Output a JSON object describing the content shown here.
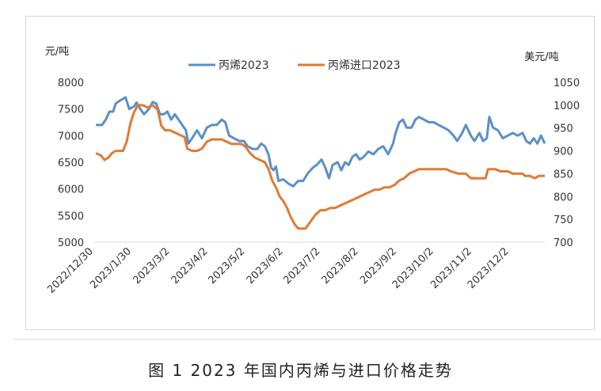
{
  "chart_data": {
    "type": "line",
    "caption": "图 1 2023 年国内丙烯与进口价格走势",
    "y_left": {
      "label": "元/吨",
      "range": [
        5000,
        8000
      ],
      "ticks": [
        "8000",
        "7500",
        "7000",
        "6500",
        "6000",
        "5500",
        "5000"
      ]
    },
    "y_right": {
      "label": "美元/吨",
      "range": [
        700,
        1050
      ],
      "ticks": [
        "1050",
        "1000",
        "950",
        "900",
        "850",
        "800",
        "750",
        "700"
      ]
    },
    "x_range": [
      "2022-12-30",
      "2023-12-31"
    ],
    "x_ticks": [
      "2022/12/30",
      "2023/1/30",
      "2023/3/2",
      "2023/4/2",
      "2023/5/2",
      "2023/6/2",
      "2023/7/2",
      "2023/8/2",
      "2023/9/2",
      "2023/10/2",
      "2023/11/2",
      "2023/12/2"
    ],
    "legend_position": "top",
    "series": [
      {
        "name": "丙烯2023",
        "axis": "left",
        "color": "#5b8fc9",
        "points": [
          [
            "2023-01-01",
            7200
          ],
          [
            "2023-01-06",
            7200
          ],
          [
            "2023-01-09",
            7300
          ],
          [
            "2023-01-12",
            7450
          ],
          [
            "2023-01-15",
            7450
          ],
          [
            "2023-01-17",
            7600
          ],
          [
            "2023-01-20",
            7650
          ],
          [
            "2023-01-25",
            7720
          ],
          [
            "2023-01-28",
            7500
          ],
          [
            "2023-02-01",
            7550
          ],
          [
            "2023-02-03",
            7620
          ],
          [
            "2023-02-06",
            7500
          ],
          [
            "2023-02-09",
            7400
          ],
          [
            "2023-02-13",
            7500
          ],
          [
            "2023-02-16",
            7630
          ],
          [
            "2023-02-19",
            7600
          ],
          [
            "2023-02-22",
            7400
          ],
          [
            "2023-02-25",
            7400
          ],
          [
            "2023-02-28",
            7450
          ],
          [
            "2023-03-03",
            7300
          ],
          [
            "2023-03-06",
            7400
          ],
          [
            "2023-03-09",
            7300
          ],
          [
            "2023-03-12",
            7200
          ],
          [
            "2023-03-15",
            7100
          ],
          [
            "2023-03-17",
            6850
          ],
          [
            "2023-03-20",
            6950
          ],
          [
            "2023-03-24",
            7100
          ],
          [
            "2023-03-28",
            6950
          ],
          [
            "2023-04-01",
            7150
          ],
          [
            "2023-04-05",
            7200
          ],
          [
            "2023-04-09",
            7200
          ],
          [
            "2023-04-13",
            7300
          ],
          [
            "2023-04-16",
            7250
          ],
          [
            "2023-04-19",
            7000
          ],
          [
            "2023-04-23",
            6950
          ],
          [
            "2023-04-27",
            6900
          ],
          [
            "2023-05-01",
            6900
          ],
          [
            "2023-05-04",
            6800
          ],
          [
            "2023-05-08",
            6750
          ],
          [
            "2023-05-12",
            6750
          ],
          [
            "2023-05-15",
            6850
          ],
          [
            "2023-05-18",
            6800
          ],
          [
            "2023-05-21",
            6650
          ],
          [
            "2023-05-23",
            6400
          ],
          [
            "2023-05-25",
            6350
          ],
          [
            "2023-05-27",
            6420
          ],
          [
            "2023-05-29",
            6150
          ],
          [
            "2023-06-02",
            6180
          ],
          [
            "2023-06-06",
            6100
          ],
          [
            "2023-06-10",
            6050
          ],
          [
            "2023-06-14",
            6150
          ],
          [
            "2023-06-18",
            6150
          ],
          [
            "2023-06-22",
            6300
          ],
          [
            "2023-06-26",
            6400
          ],
          [
            "2023-06-29",
            6450
          ],
          [
            "2023-07-03",
            6550
          ],
          [
            "2023-07-06",
            6400
          ],
          [
            "2023-07-09",
            6200
          ],
          [
            "2023-07-12",
            6450
          ],
          [
            "2023-07-16",
            6500
          ],
          [
            "2023-07-19",
            6350
          ],
          [
            "2023-07-22",
            6500
          ],
          [
            "2023-07-25",
            6450
          ],
          [
            "2023-07-28",
            6600
          ],
          [
            "2023-07-31",
            6650
          ],
          [
            "2023-08-03",
            6550
          ],
          [
            "2023-08-06",
            6600
          ],
          [
            "2023-08-10",
            6700
          ],
          [
            "2023-08-14",
            6650
          ],
          [
            "2023-08-18",
            6750
          ],
          [
            "2023-08-22",
            6800
          ],
          [
            "2023-08-26",
            6650
          ],
          [
            "2023-08-30",
            6850
          ],
          [
            "2023-09-01",
            7050
          ],
          [
            "2023-09-04",
            7250
          ],
          [
            "2023-09-07",
            7300
          ],
          [
            "2023-09-10",
            7150
          ],
          [
            "2023-09-14",
            7150
          ],
          [
            "2023-09-17",
            7300
          ],
          [
            "2023-09-20",
            7350
          ],
          [
            "2023-09-24",
            7300
          ],
          [
            "2023-09-28",
            7250
          ],
          [
            "2023-10-02",
            7250
          ],
          [
            "2023-10-06",
            7200
          ],
          [
            "2023-10-10",
            7150
          ],
          [
            "2023-10-14",
            7100
          ],
          [
            "2023-10-18",
            7000
          ],
          [
            "2023-10-21",
            6900
          ],
          [
            "2023-10-25",
            7050
          ],
          [
            "2023-10-28",
            7200
          ],
          [
            "2023-11-01",
            7000
          ],
          [
            "2023-11-04",
            6900
          ],
          [
            "2023-11-08",
            7050
          ],
          [
            "2023-11-11",
            6900
          ],
          [
            "2023-11-14",
            6950
          ],
          [
            "2023-11-16",
            7350
          ],
          [
            "2023-11-19",
            7150
          ],
          [
            "2023-11-23",
            7100
          ],
          [
            "2023-11-27",
            6950
          ],
          [
            "2023-12-01",
            7000
          ],
          [
            "2023-12-05",
            7050
          ],
          [
            "2023-12-09",
            7000
          ],
          [
            "2023-12-13",
            7050
          ],
          [
            "2023-12-16",
            6900
          ],
          [
            "2023-12-19",
            6850
          ],
          [
            "2023-12-22",
            6950
          ],
          [
            "2023-12-25",
            6850
          ],
          [
            "2023-12-28",
            7000
          ],
          [
            "2023-12-31",
            6850
          ]
        ]
      },
      {
        "name": "丙烯进口2023",
        "axis": "right",
        "color": "#e07a33",
        "points": [
          [
            "2023-01-01",
            895
          ],
          [
            "2023-01-05",
            890
          ],
          [
            "2023-01-08",
            880
          ],
          [
            "2023-01-11",
            885
          ],
          [
            "2023-01-14",
            895
          ],
          [
            "2023-01-17",
            900
          ],
          [
            "2023-01-20",
            900
          ],
          [
            "2023-01-23",
            900
          ],
          [
            "2023-01-26",
            920
          ],
          [
            "2023-01-29",
            960
          ],
          [
            "2023-02-01",
            985
          ],
          [
            "2023-02-04",
            1000
          ],
          [
            "2023-02-08",
            1000
          ],
          [
            "2023-02-12",
            995
          ],
          [
            "2023-02-16",
            1000
          ],
          [
            "2023-02-20",
            990
          ],
          [
            "2023-02-23",
            955
          ],
          [
            "2023-02-26",
            945
          ],
          [
            "2023-03-02",
            945
          ],
          [
            "2023-03-06",
            940
          ],
          [
            "2023-03-10",
            935
          ],
          [
            "2023-03-14",
            930
          ],
          [
            "2023-03-16",
            905
          ],
          [
            "2023-03-20",
            900
          ],
          [
            "2023-03-24",
            900
          ],
          [
            "2023-03-28",
            905
          ],
          [
            "2023-04-01",
            920
          ],
          [
            "2023-04-05",
            925
          ],
          [
            "2023-04-09",
            925
          ],
          [
            "2023-04-13",
            925
          ],
          [
            "2023-04-17",
            920
          ],
          [
            "2023-04-21",
            915
          ],
          [
            "2023-04-25",
            915
          ],
          [
            "2023-04-29",
            915
          ],
          [
            "2023-05-02",
            910
          ],
          [
            "2023-05-06",
            895
          ],
          [
            "2023-05-10",
            885
          ],
          [
            "2023-05-14",
            880
          ],
          [
            "2023-05-18",
            875
          ],
          [
            "2023-05-21",
            860
          ],
          [
            "2023-05-24",
            835
          ],
          [
            "2023-05-27",
            820
          ],
          [
            "2023-05-30",
            800
          ],
          [
            "2023-06-02",
            790
          ],
          [
            "2023-06-05",
            775
          ],
          [
            "2023-06-08",
            755
          ],
          [
            "2023-06-11",
            740
          ],
          [
            "2023-06-14",
            730
          ],
          [
            "2023-06-20",
            730
          ],
          [
            "2023-06-24",
            745
          ],
          [
            "2023-06-28",
            760
          ],
          [
            "2023-07-02",
            770
          ],
          [
            "2023-07-06",
            770
          ],
          [
            "2023-07-10",
            775
          ],
          [
            "2023-07-14",
            775
          ],
          [
            "2023-07-18",
            780
          ],
          [
            "2023-07-22",
            785
          ],
          [
            "2023-07-26",
            790
          ],
          [
            "2023-07-30",
            795
          ],
          [
            "2023-08-03",
            800
          ],
          [
            "2023-08-07",
            805
          ],
          [
            "2023-08-11",
            810
          ],
          [
            "2023-08-15",
            815
          ],
          [
            "2023-08-19",
            815
          ],
          [
            "2023-08-23",
            820
          ],
          [
            "2023-08-27",
            820
          ],
          [
            "2023-08-31",
            825
          ],
          [
            "2023-09-04",
            835
          ],
          [
            "2023-09-08",
            840
          ],
          [
            "2023-09-12",
            850
          ],
          [
            "2023-09-16",
            855
          ],
          [
            "2023-09-20",
            860
          ],
          [
            "2023-09-24",
            860
          ],
          [
            "2023-09-30",
            860
          ],
          [
            "2023-10-06",
            860
          ],
          [
            "2023-10-12",
            860
          ],
          [
            "2023-10-16",
            855
          ],
          [
            "2023-10-22",
            850
          ],
          [
            "2023-10-28",
            850
          ],
          [
            "2023-11-01",
            840
          ],
          [
            "2023-11-07",
            840
          ],
          [
            "2023-11-13",
            840
          ],
          [
            "2023-11-15",
            860
          ],
          [
            "2023-11-21",
            860
          ],
          [
            "2023-11-25",
            855
          ],
          [
            "2023-12-01",
            855
          ],
          [
            "2023-12-05",
            850
          ],
          [
            "2023-12-09",
            850
          ],
          [
            "2023-12-13",
            850
          ],
          [
            "2023-12-15",
            845
          ],
          [
            "2023-12-19",
            845
          ],
          [
            "2023-12-23",
            840
          ],
          [
            "2023-12-26",
            845
          ],
          [
            "2023-12-31",
            845
          ]
        ]
      }
    ]
  }
}
